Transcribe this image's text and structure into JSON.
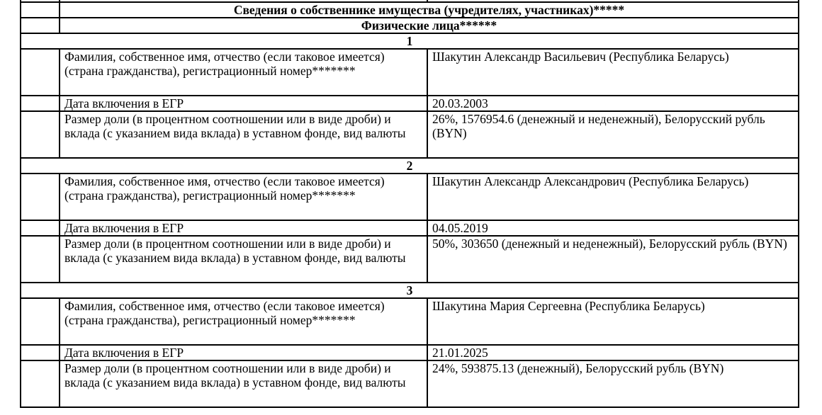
{
  "section_title": "Сведения о собственнике имущества (учредителях, участниках)*****",
  "subsection_title": "Физические лица******",
  "field_labels": {
    "name": "Фамилия, собственное имя, отчество (если таковое имеется) (страна гражданства), регистрационный номер*******",
    "date": "Дата включения в ЕГР",
    "share": "Размер доли (в процентном соотношении или в виде дроби) и вклада (с указанием вида вклада) в уставном фонде, вид валюты"
  },
  "persons": [
    {
      "number": "1",
      "name": "Шакутин Александр Васильевич (Республика Беларусь)",
      "date": "20.03.2003",
      "share": "26%, 1576954.6 (денежный и неденежный), Белорусский рубль (BYN)"
    },
    {
      "number": "2",
      "name": "Шакутин Александр Александрович (Республика Беларусь)",
      "date": "04.05.2019",
      "share": "50%, 303650 (денежный и неденежный), Белорусский рубль (BYN)"
    },
    {
      "number": "3",
      "name": "Шакутина Мария Сергеевна (Республика Беларусь)",
      "date": "21.01.2025",
      "share": "24%, 593875.13 (денежный), Белорусский рубль (BYN)"
    }
  ]
}
